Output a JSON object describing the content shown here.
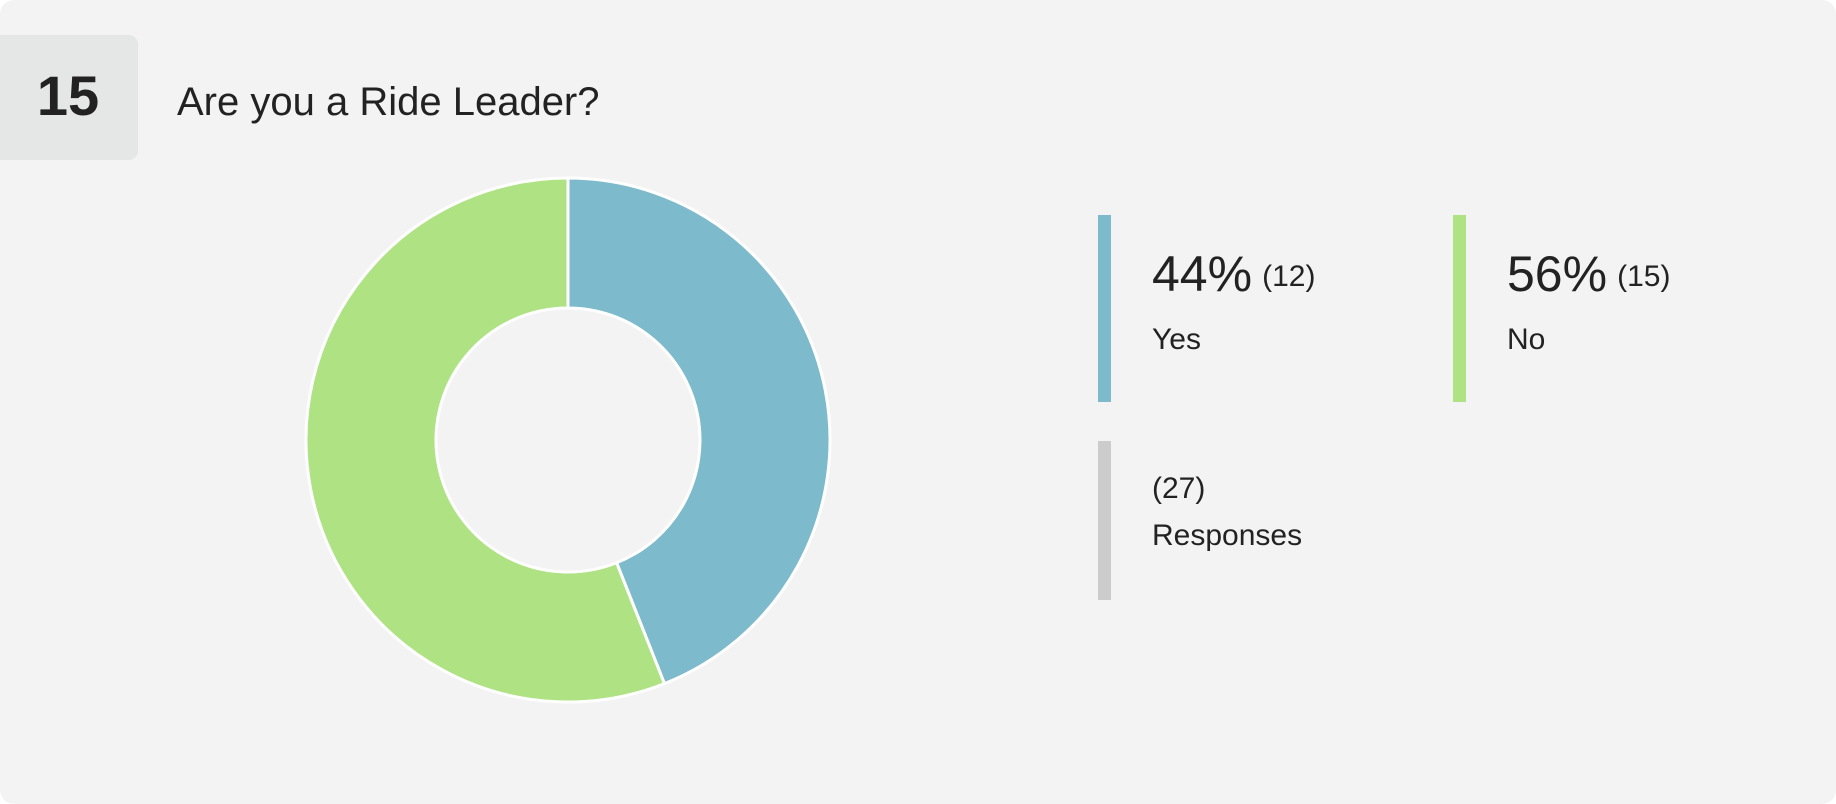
{
  "question": {
    "number": 15,
    "text": "Are you a Ride Leader?"
  },
  "chart_data": {
    "type": "donut",
    "categories": [
      "Yes",
      "No"
    ],
    "values": [
      44,
      56
    ],
    "value_labels": [
      "44%",
      "56%"
    ],
    "counts": [
      12,
      15
    ],
    "count_labels": [
      "(12)",
      "(15)"
    ],
    "colors": [
      "#7cbacc",
      "#aee283"
    ],
    "total": 27,
    "total_label": "(27)",
    "total_name": "Responses"
  }
}
